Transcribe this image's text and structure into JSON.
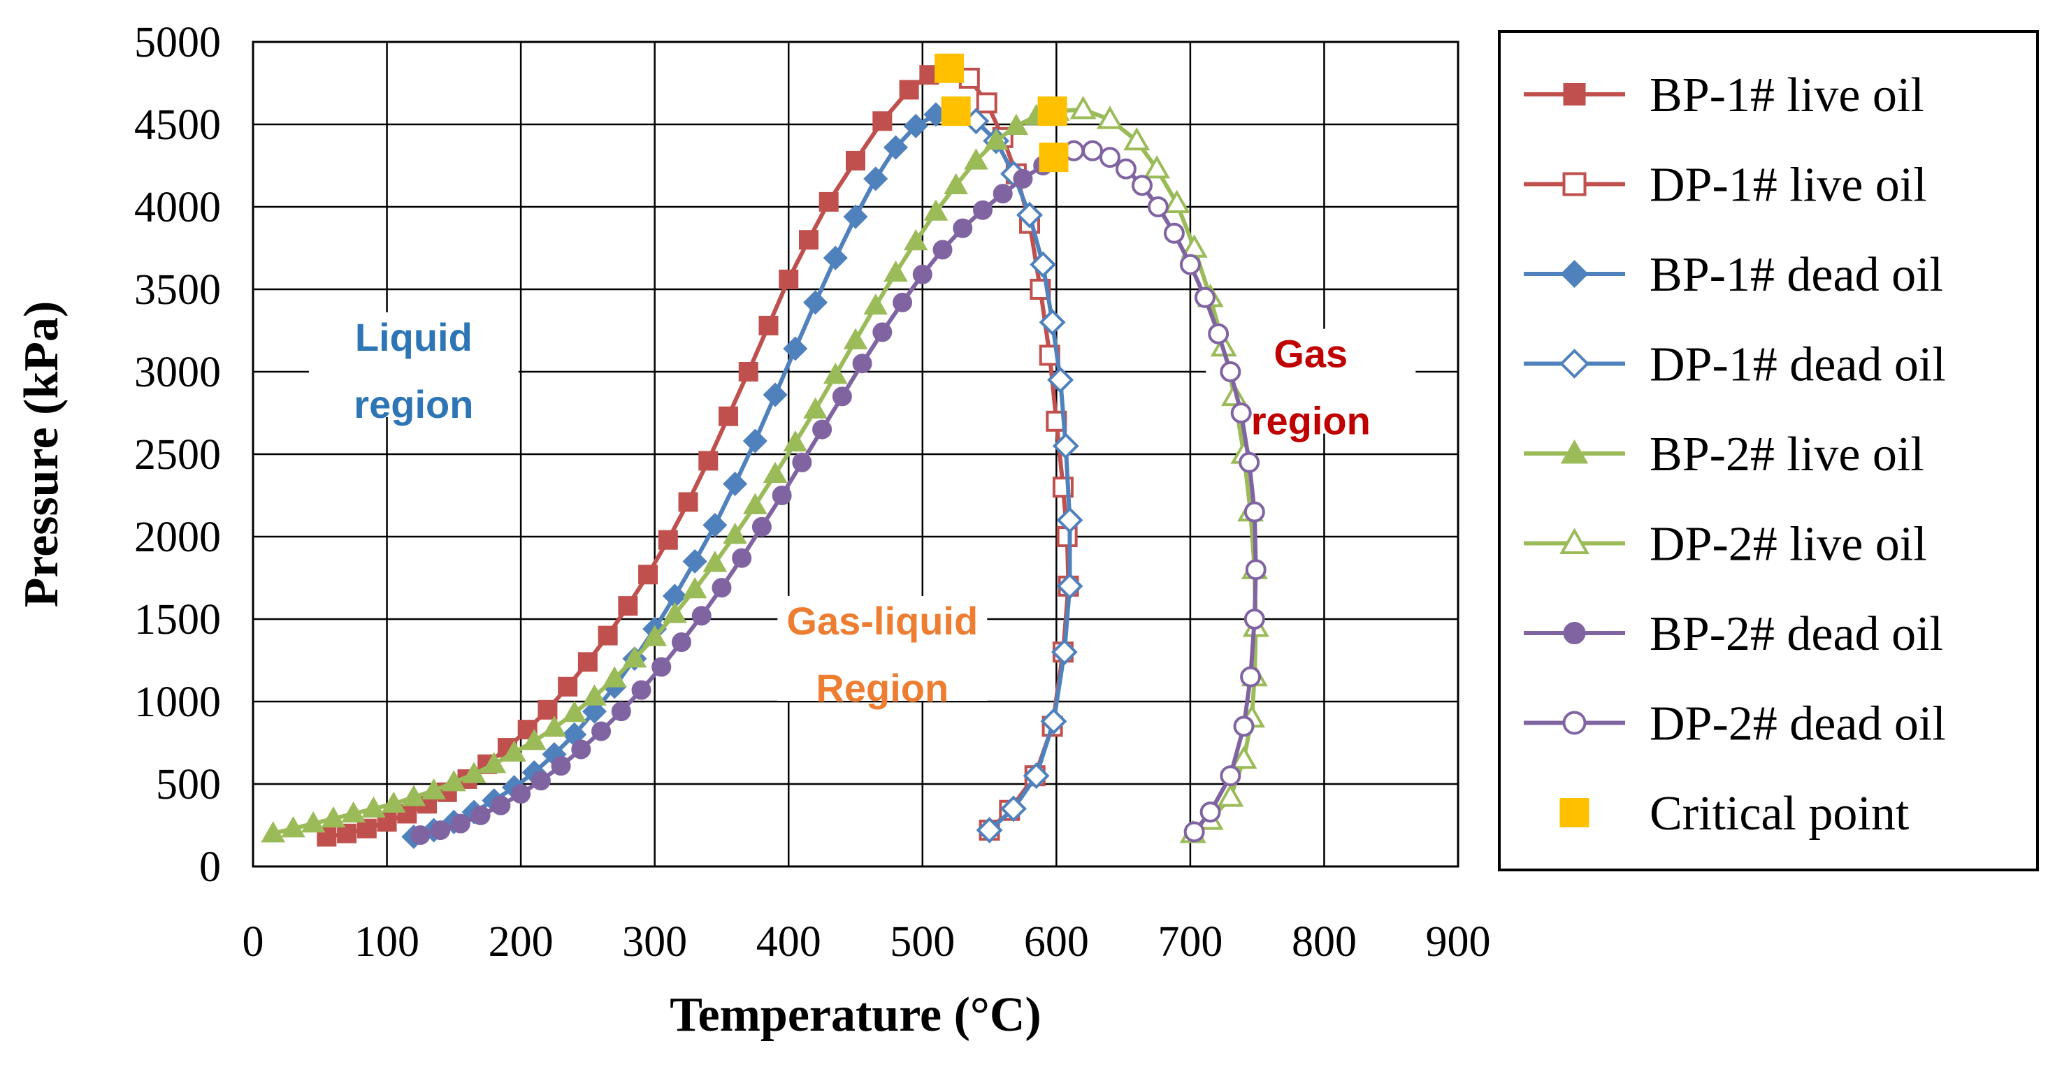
{
  "chart_data": {
    "type": "line",
    "title": "",
    "xlabel": "Temperature (°C)",
    "ylabel": "Pressure (kPa)",
    "xlim": [
      0,
      900
    ],
    "ylim": [
      0,
      5000
    ],
    "xticks": [
      "0",
      "100",
      "200",
      "300",
      "400",
      "500",
      "600",
      "700",
      "800",
      "900"
    ],
    "yticks": [
      "0",
      "500",
      "1000",
      "1500",
      "2000",
      "2500",
      "3000",
      "3500",
      "4000",
      "4500",
      "5000"
    ],
    "grid": true,
    "legend_position": "right",
    "colors": {
      "red": "#c0504d",
      "blue": "#4f81bd",
      "green": "#9bbb59",
      "purple": "#8064a2",
      "critical": "#ffc000",
      "liquid_label": "#2e75b6",
      "gas_label": "#c00000",
      "gasliquid_label": "#ed7d31"
    },
    "annotations": [
      {
        "id": "liquid",
        "lines": [
          "Liquid",
          "region"
        ],
        "x": 120,
        "y": 3000,
        "color": "#2e75b6"
      },
      {
        "id": "gas",
        "lines": [
          "Gas",
          "region"
        ],
        "x": 790,
        "y": 2900,
        "color": "#c00000"
      },
      {
        "id": "gasliquid",
        "lines": [
          "Gas-liquid",
          "Region"
        ],
        "x": 470,
        "y": 1280,
        "color": "#ed7d31"
      }
    ],
    "series": [
      {
        "name": "BP-1# live oil",
        "color": "#c0504d",
        "marker": "square",
        "filled": true,
        "x": [
          55,
          70,
          85,
          100,
          115,
          130,
          145,
          160,
          175,
          190,
          205,
          220,
          235,
          250,
          265,
          280,
          295,
          310,
          325,
          340,
          355,
          370,
          385,
          400,
          415,
          430,
          450,
          470,
          490,
          505,
          520
        ],
        "y": [
          180,
          200,
          230,
          270,
          320,
          380,
          450,
          530,
          620,
          720,
          830,
          950,
          1090,
          1240,
          1400,
          1580,
          1770,
          1980,
          2210,
          2460,
          2730,
          3000,
          3280,
          3560,
          3800,
          4030,
          4280,
          4520,
          4710,
          4800,
          4840
        ]
      },
      {
        "name": "DP-1# live oil",
        "color": "#c0504d",
        "marker": "square",
        "filled": false,
        "x": [
          520,
          535,
          548,
          560,
          570,
          580,
          588,
          595,
          600,
          605,
          608,
          609,
          605,
          597,
          584,
          565,
          550
        ],
        "y": [
          4840,
          4780,
          4630,
          4420,
          4200,
          3900,
          3500,
          3100,
          2700,
          2300,
          2000,
          1700,
          1300,
          850,
          550,
          340,
          220
        ]
      },
      {
        "name": "BP-1# dead oil",
        "color": "#4f81bd",
        "marker": "diamond",
        "filled": true,
        "x": [
          120,
          135,
          150,
          165,
          180,
          195,
          210,
          225,
          240,
          255,
          270,
          285,
          300,
          315,
          330,
          345,
          360,
          375,
          390,
          405,
          420,
          435,
          450,
          465,
          480,
          495,
          510,
          525
        ],
        "y": [
          180,
          220,
          270,
          330,
          400,
          480,
          570,
          680,
          800,
          940,
          1090,
          1260,
          1440,
          1640,
          1850,
          2070,
          2320,
          2580,
          2860,
          3140,
          3420,
          3690,
          3940,
          4170,
          4360,
          4490,
          4560,
          4580
        ]
      },
      {
        "name": "DP-1# dead oil",
        "color": "#4f81bd",
        "marker": "diamond",
        "filled": false,
        "x": [
          525,
          540,
          555,
          568,
          580,
          590,
          597,
          603,
          607,
          610,
          610,
          606,
          598,
          585,
          568,
          550
        ],
        "y": [
          4580,
          4520,
          4400,
          4200,
          3950,
          3650,
          3300,
          2950,
          2550,
          2100,
          1700,
          1300,
          880,
          550,
          350,
          220
        ]
      },
      {
        "name": "BP-2# live oil",
        "color": "#9bbb59",
        "marker": "triangle",
        "filled": true,
        "x": [
          15,
          30,
          45,
          60,
          75,
          90,
          105,
          120,
          135,
          150,
          165,
          180,
          195,
          210,
          225,
          240,
          255,
          270,
          285,
          300,
          315,
          330,
          345,
          360,
          375,
          390,
          405,
          420,
          435,
          450,
          465,
          480,
          495,
          510,
          525,
          540,
          555,
          570,
          585,
          600
        ],
        "y": [
          200,
          230,
          260,
          290,
          320,
          350,
          380,
          420,
          460,
          510,
          560,
          620,
          690,
          760,
          840,
          930,
          1030,
          1140,
          1260,
          1390,
          1530,
          1680,
          1840,
          2010,
          2190,
          2380,
          2570,
          2770,
          2980,
          3190,
          3400,
          3600,
          3790,
          3970,
          4130,
          4280,
          4400,
          4490,
          4550,
          4580
        ]
      },
      {
        "name": "DP-2# live oil",
        "color": "#9bbb59",
        "marker": "triangle",
        "filled": false,
        "x": [
          600,
          620,
          640,
          660,
          675,
          690,
          703,
          715,
          725,
          733,
          740,
          745,
          748,
          749,
          748,
          746,
          740,
          730,
          715,
          702
        ],
        "y": [
          4580,
          4590,
          4530,
          4400,
          4230,
          4020,
          3750,
          3450,
          3150,
          2850,
          2500,
          2150,
          1800,
          1450,
          1150,
          900,
          650,
          420,
          280,
          200
        ]
      },
      {
        "name": "BP-2# dead oil",
        "color": "#8064a2",
        "marker": "circle",
        "filled": true,
        "x": [
          125,
          140,
          155,
          170,
          185,
          200,
          215,
          230,
          245,
          260,
          275,
          290,
          305,
          320,
          335,
          350,
          365,
          380,
          395,
          410,
          425,
          440,
          455,
          470,
          485,
          500,
          515,
          530,
          545,
          560,
          575,
          590,
          600
        ],
        "y": [
          190,
          220,
          260,
          310,
          370,
          440,
          520,
          610,
          710,
          820,
          940,
          1070,
          1210,
          1360,
          1520,
          1690,
          1870,
          2060,
          2250,
          2450,
          2650,
          2850,
          3050,
          3240,
          3420,
          3590,
          3740,
          3870,
          3980,
          4080,
          4170,
          4250,
          4300
        ]
      },
      {
        "name": "DP-2# dead oil",
        "color": "#8064a2",
        "marker": "circle",
        "filled": false,
        "x": [
          600,
          613,
          627,
          640,
          652,
          664,
          676,
          688,
          700,
          711,
          721,
          730,
          738,
          744,
          748,
          749,
          748,
          745,
          740,
          730,
          715,
          703
        ],
        "y": [
          4300,
          4340,
          4340,
          4300,
          4230,
          4130,
          4000,
          3840,
          3650,
          3450,
          3230,
          3000,
          2750,
          2450,
          2150,
          1800,
          1500,
          1150,
          850,
          550,
          330,
          210
        ]
      },
      {
        "name": "Critical point",
        "color": "#ffc000",
        "marker": "square",
        "filled": true,
        "line": false,
        "x": [
          520,
          525,
          597,
          598
        ],
        "y": [
          4840,
          4580,
          4580,
          4300
        ]
      }
    ]
  }
}
